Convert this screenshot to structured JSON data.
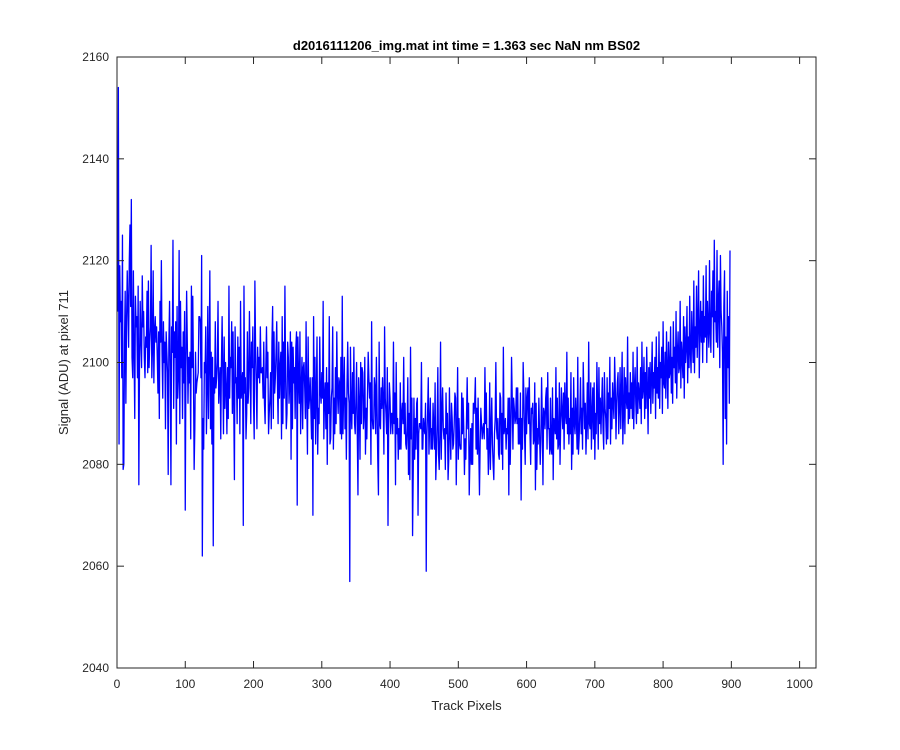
{
  "chart_data": {
    "type": "line",
    "title": "d2016111206_img.mat int time = 1.363 sec  NaN nm BS02",
    "xlabel": "Track Pixels",
    "ylabel": "Signal (ADU) at pixel 711",
    "xlim": [
      0,
      1024
    ],
    "ylim": [
      2040,
      2160
    ],
    "xticks": [
      0,
      100,
      200,
      300,
      400,
      500,
      600,
      700,
      800,
      900,
      1000
    ],
    "yticks": [
      2040,
      2060,
      2080,
      2100,
      2120,
      2140,
      2160
    ],
    "grid": false,
    "series": [
      {
        "color": "#0000ff",
        "x_start": 1,
        "x_step": 1,
        "values": [
          2110,
          2154,
          2084,
          2119,
          2108,
          2112,
          2097,
          2125,
          2079,
          2080,
          2104,
          2114,
          2092,
          2108,
          2118,
          2111,
          2103,
          2120,
          2127,
          2111,
          2132,
          2101,
          2097,
          2118,
          2102,
          2089,
          2113,
          2107,
          2109,
          2097,
          2115,
          2076,
          2101,
          2112,
          2104,
          2099,
          2117,
          2107,
          2110,
          2101,
          2097,
          2105,
          2103,
          2114,
          2098,
          2116,
          2099,
          2104,
          2107,
          2123,
          2097,
          2103,
          2118,
          2096,
          2106,
          2109,
          2104,
          2107,
          2101,
          2094,
          2106,
          2089,
          2112,
          2104,
          2120,
          2102,
          2093,
          2108,
          2100,
          2104,
          2087,
          2106,
          2102,
          2098,
          2078,
          2104,
          2112,
          2099,
          2076,
          2107,
          2102,
          2124,
          2091,
          2106,
          2101,
          2108,
          2084,
          2111,
          2093,
          2097,
          2122,
          2088,
          2112,
          2099,
          2103,
          2089,
          2106,
          2096,
          2110,
          2071,
          2100,
          2114,
          2104,
          2092,
          2101,
          2096,
          2102,
          2085,
          2115,
          2099,
          2113,
          2098,
          2079,
          2087,
          2102,
          2094,
          2096,
          2097,
          2098,
          2109,
          2109,
          2108,
          2097,
          2121,
          2062,
          2089,
          2083,
          2100,
          2098,
          2107,
          2086,
          2095,
          2111,
          2089,
          2101,
          2118,
          2087,
          2102,
          2084,
          2101,
          2064,
          2097,
          2094,
          2108,
          2095,
          2097,
          2100,
          2112,
          2092,
          2096,
          2099,
          2085,
          2100,
          2109,
          2098,
          2086,
          2105,
          2091,
          2100,
          2095,
          2086,
          2099,
          2089,
          2115,
          2093,
          2101,
          2099,
          2108,
          2090,
          2106,
          2092,
          2077,
          2107,
          2096,
          2097,
          2088,
          2105,
          2093,
          2103,
          2086,
          2112,
          2093,
          2096,
          2098,
          2068,
          2115,
          2094,
          2097,
          2085,
          2090,
          2106,
          2092,
          2095,
          2110,
          2100,
          2088,
          2104,
          2099,
          2107,
          2092,
          2085,
          2116,
          2103,
          2096,
          2087,
          2103,
          2097,
          2101,
          2096,
          2107,
          2098,
          2098,
          2099,
          2093,
          2104,
          2092,
          2088,
          2099,
          2107,
          2097,
          2102,
          2086,
          2090,
          2093,
          2098,
          2087,
          2104,
          2111,
          2089,
          2106,
          2094,
          2097,
          2102,
          2108,
          2096,
          2088,
          2104,
          2093,
          2099,
          2102,
          2085,
          2109,
          2088,
          2104,
          2093,
          2115,
          2097,
          2087,
          2090,
          2104,
          2101,
          2092,
          2096,
          2106,
          2081,
          2104,
          2087,
          2103,
          2096,
          2099,
          2089,
          2103,
          2106,
          2072,
          2105,
          2097,
          2092,
          2106,
          2086,
          2095,
          2101,
          2087,
          2099,
          2100,
          2095,
          2089,
          2108,
          2093,
          2082,
          2105,
          2091,
          2093,
          2097,
          2091,
          2085,
          2097,
          2070,
          2109,
          2089,
          2101,
          2084,
          2094,
          2105,
          2082,
          2091,
          2088,
          2105,
          2094,
          2092,
          2098,
          2093,
          2112,
          2085,
          2093,
          2096,
          2087,
          2099,
          2080,
          2096,
          2090,
          2109,
          2084,
          2085,
          2093,
          2095,
          2107,
          2083,
          2093,
          2086,
          2099,
          2088,
          2106,
          2094,
          2090,
          2097,
          2096,
          2086,
          2101,
          2085,
          2113,
          2086,
          2094,
          2101,
          2087,
          2093,
          2081,
          2096,
          2104,
          2094,
          2092,
          2057,
          2103,
          2091,
          2087,
          2098,
          2090,
          2103,
          2088,
          2086,
          2093,
          2100,
          2086,
          2074,
          2097,
          2092,
          2081,
          2100,
          2088,
          2099,
          2098,
          2087,
          2090,
          2101,
          2082,
          2091,
          2085,
          2094,
          2102,
          2097,
          2093,
          2096,
          2080,
          2108,
          2089,
          2087,
          2087,
          2097,
          2095,
          2086,
          2101,
          2091,
          2081,
          2074,
          2104,
          2088,
          2087,
          2095,
          2091,
          2097,
          2092,
          2082,
          2107,
          2093,
          2090,
          2086,
          2099,
          2068,
          2088,
          2096,
          2093,
          2086,
          2090,
          2090,
          2086,
          2104,
          2088,
          2094,
          2076,
          2100,
          2086,
          2089,
          2081,
          2087,
          2083,
          2096,
          2083,
          2090,
          2092,
          2088,
          2101,
          2086,
          2092,
          2084,
          2083,
          2087,
          2097,
          2078,
          2090,
          2077,
          2103,
          2085,
          2093,
          2066,
          2079,
          2093,
          2081,
          2089,
          2083,
          2092,
          2093,
          2070,
          2086,
          2088,
          2088,
          2087,
          2100,
          2083,
          2083,
          2089,
          2087,
          2086,
          2092,
          2059,
          2086,
          2090,
          2097,
          2082,
          2088,
          2093,
          2083,
          2087,
          2083,
          2092,
          2087,
          2083,
          2096,
          2077,
          2082,
          2088,
          2099,
          2082,
          2079,
          2086,
          2104,
          2081,
          2090,
          2095,
          2087,
          2085,
          2087,
          2079,
          2094,
          2086,
          2090,
          2077,
          2081,
          2095,
          2086,
          2081,
          2092,
          2089,
          2083,
          2084,
          2088,
          2094,
          2093,
          2076,
          2087,
          2099,
          2081,
          2089,
          2084,
          2083,
          2083,
          2094,
          2086,
          2093,
          2087,
          2078,
          2085,
          2081,
          2089,
          2097,
          2087,
          2092,
          2074,
          2081,
          2087,
          2080,
          2088,
          2080,
          2092,
          2090,
          2092,
          2097,
          2083,
          2091,
          2082,
          2093,
          2083,
          2074,
          2084,
          2091,
          2088,
          2085,
          2087,
          2088,
          2085,
          2099,
          2088,
          2094,
          2083,
          2087,
          2078,
          2083,
          2096,
          2079,
          2087,
          2093,
          2084,
          2080,
          2077,
          2086,
          2089,
          2100,
          2087,
          2085,
          2089,
          2082,
          2081,
          2094,
          2093,
          2082,
          2090,
          2079,
          2103,
          2086,
          2087,
          2089,
          2083,
          2087,
          2086,
          2093,
          2074,
          2093,
          2080,
          2087,
          2101,
          2093,
          2083,
          2093,
          2091,
          2088,
          2089,
          2095,
          2088,
          2095,
          2084,
          2089,
          2084,
          2094,
          2073,
          2089,
          2083,
          2100,
          2094,
          2086,
          2080,
          2095,
          2086,
          2093,
          2095,
          2088,
          2097,
          2086,
          2080,
          2091,
          2090,
          2092,
          2084,
          2085,
          2096,
          2075,
          2092,
          2079,
          2087,
          2084,
          2093,
          2086,
          2080,
          2085,
          2097,
          2089,
          2076,
          2091,
          2090,
          2087,
          2093,
          2095,
          2083,
          2098,
          2087,
          2087,
          2082,
          2093,
          2083,
          2082,
          2095,
          2077,
          2089,
          2088,
          2086,
          2099,
          2085,
          2093,
          2083,
          2084,
          2096,
          2080,
          2088,
          2095,
          2090,
          2087,
          2094,
          2083,
          2096,
          2090,
          2088,
          2102,
          2086,
          2093,
          2084,
          2089,
          2086,
          2098,
          2079,
          2091,
          2082,
          2097,
          2088,
          2086,
          2093,
          2089,
          2083,
          2101,
          2082,
          2085,
          2090,
          2097,
          2086,
          2091,
          2083,
          2100,
          2093,
          2087,
          2092,
          2082,
          2088,
          2096,
          2085,
          2104,
          2088,
          2087,
          2096,
          2083,
          2090,
          2095,
          2085,
          2096,
          2081,
          2090,
          2086,
          2100,
          2092,
          2083,
          2099,
          2088,
          2093,
          2086,
          2092,
          2097,
          2087,
          2083,
          2098,
          2091,
          2089,
          2084,
          2097,
          2085,
          2094,
          2091,
          2101,
          2084,
          2093,
          2087,
          2096,
          2092,
          2089,
          2101,
          2095,
          2085,
          2092,
          2096,
          2098,
          2086,
          2091,
          2099,
          2087,
          2094,
          2102,
          2084,
          2090,
          2099,
          2086,
          2097,
          2093,
          2091,
          2105,
          2088,
          2094,
          2089,
          2098,
          2091,
          2096,
          2089,
          2102,
          2087,
          2095,
          2099,
          2092,
          2088,
          2103,
          2090,
          2096,
          2094,
          2091,
          2099,
          2088,
          2104,
          2093,
          2095,
          2101,
          2089,
          2098,
          2091,
          2103,
          2095,
          2086,
          2099,
          2093,
          2100,
          2090,
          2097,
          2104,
          2092,
          2098,
          2095,
          2101,
          2089,
          2105,
          2094,
          2099,
          2093,
          2106,
          2091,
          2100,
          2097,
          2103,
          2090,
          2108,
          2096,
          2095,
          2102,
          2093,
          2106,
          2099,
          2091,
          2104,
          2097,
          2098,
          2107,
          2094,
          2101,
          2092,
          2108,
          2099,
          2103,
          2096,
          2110,
          2093,
          2102,
          2106,
          2098,
          2099,
          2112,
          2095,
          2104,
          2101,
          2097,
          2109,
          2093,
          2107,
          2100,
          2103,
          2111,
          2096,
          2105,
          2099,
          2113,
          2102,
          2098,
          2110,
          2104,
          2100,
          2116,
          2098,
          2107,
          2103,
          2115,
          2101,
          2108,
          2118,
          2097,
          2106,
          2112,
          2104,
          2110,
          2100,
          2117,
          2104,
          2109,
          2105,
          2119,
          2100,
          2112,
          2107,
          2103,
          2120,
          2106,
          2102,
          2114,
          2109,
          2118,
          2101,
          2124,
          2108,
          2110,
          2104,
          2122,
          2103,
          2112,
          2116,
          2099,
          2121,
          2110,
          2107,
          2102,
          2080,
          2111,
          2118,
          2089,
          2105,
          2084,
          2114,
          2099,
          2109,
          2092,
          2122
        ]
      }
    ]
  }
}
